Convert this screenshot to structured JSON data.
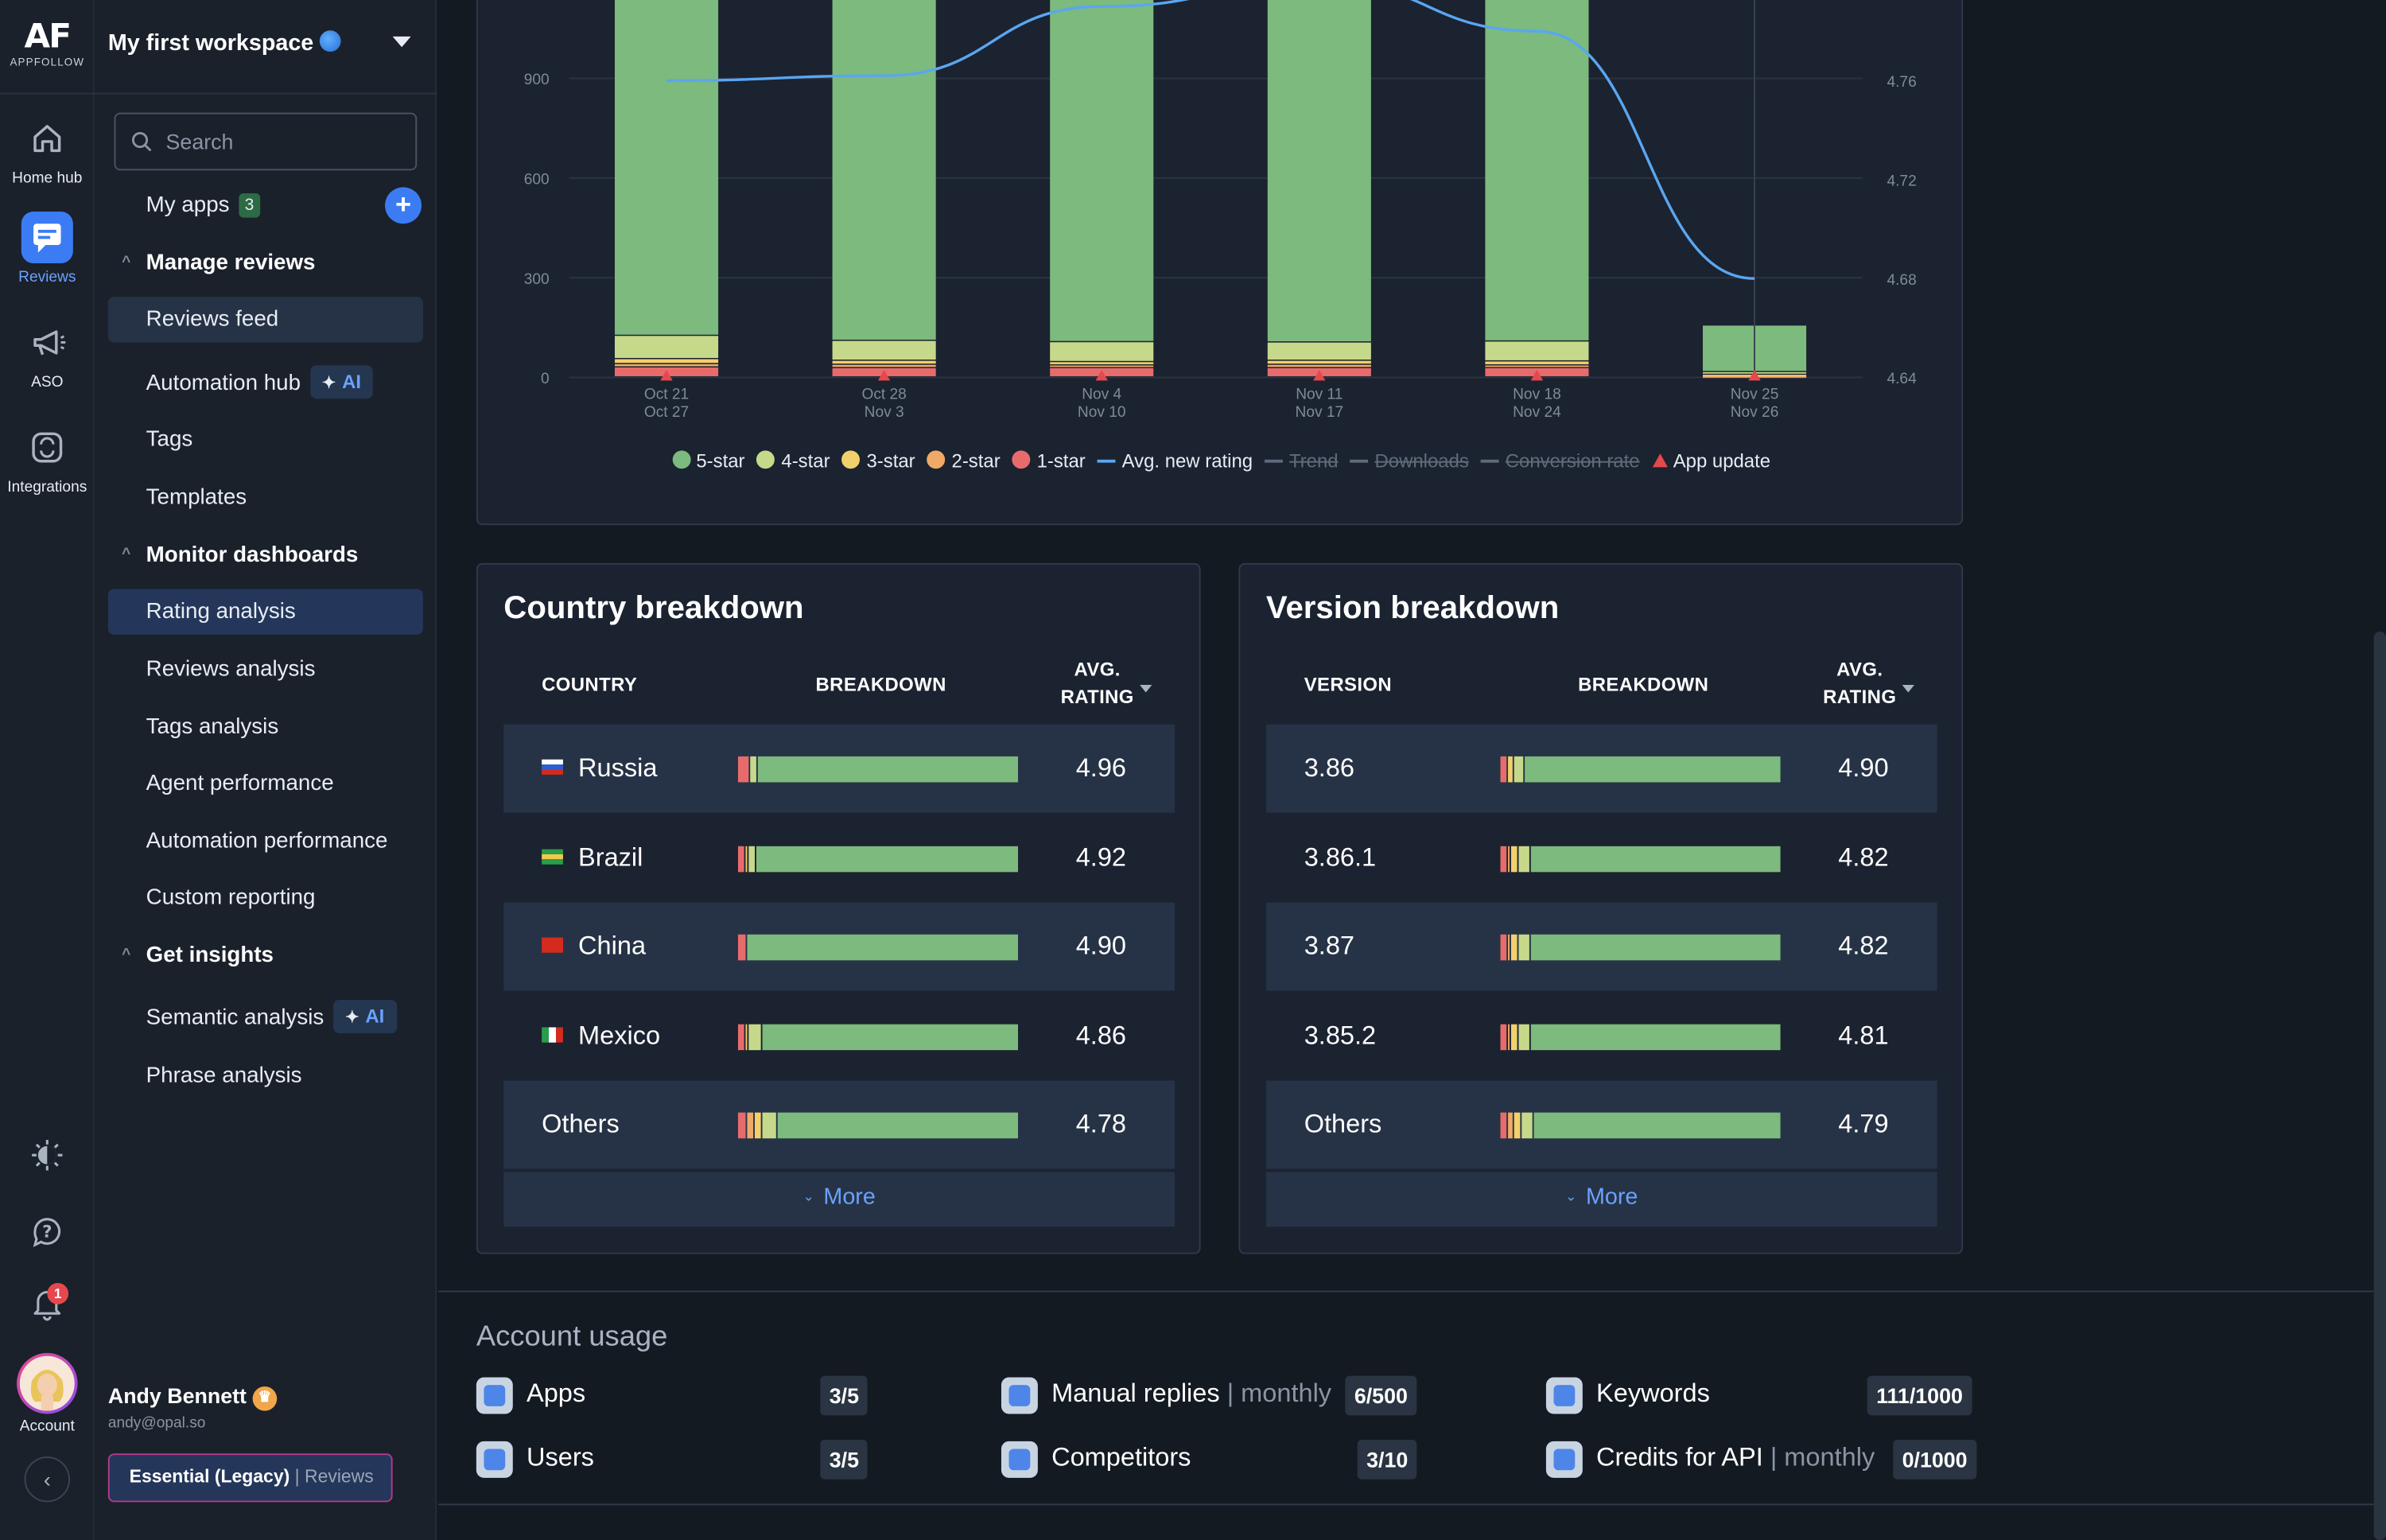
{
  "logo": {
    "mark": "AF",
    "name": "APPFOLLOW"
  },
  "rail": {
    "home": "Home hub",
    "reviews": "Reviews",
    "aso": "ASO",
    "integrations": "Integrations",
    "account": "Account",
    "notifications_count": "1"
  },
  "workspace": {
    "name": "My first workspace"
  },
  "search": {
    "placeholder": "Search"
  },
  "nav": {
    "my_apps": "My apps",
    "my_apps_count": "3",
    "manage_reviews": "Manage reviews",
    "reviews_feed": "Reviews feed",
    "automation_hub": "Automation hub",
    "tags": "Tags",
    "templates": "Templates",
    "monitor_dashboards": "Monitor dashboards",
    "rating_analysis": "Rating analysis",
    "reviews_analysis": "Reviews analysis",
    "tags_analysis": "Tags analysis",
    "agent_performance": "Agent performance",
    "automation_performance": "Automation performance",
    "custom_reporting": "Custom reporting",
    "get_insights": "Get insights",
    "semantic_analysis": "Semantic analysis",
    "phrase_analysis": "Phrase analysis",
    "ai_badge": "AI"
  },
  "user": {
    "name": "Andy Bennett",
    "email": "andy@opal.so",
    "plan": "Essential (Legacy)",
    "plan_sub": "| Reviews"
  },
  "chart_data": {
    "type": "bar",
    "categories": [
      {
        "top": "Oct 21",
        "bottom": "Oct 27"
      },
      {
        "top": "Oct 28",
        "bottom": "Nov 3"
      },
      {
        "top": "Nov 4",
        "bottom": "Nov 10"
      },
      {
        "top": "Nov 11",
        "bottom": "Nov 17"
      },
      {
        "top": "Nov 18",
        "bottom": "Nov 24"
      },
      {
        "top": "Nov 25",
        "bottom": "Nov 26"
      }
    ],
    "stacked": true,
    "series": [
      {
        "name": "5-star",
        "color": "#7dba7d",
        "values": [
          1220,
          1130,
          1140,
          1130,
          1140,
          140
        ]
      },
      {
        "name": "4-star",
        "color": "#c6d98a",
        "values": [
          70,
          60,
          60,
          55,
          60,
          8
        ]
      },
      {
        "name": "3-star",
        "color": "#f2d06b",
        "values": [
          15,
          12,
          10,
          12,
          12,
          3
        ]
      },
      {
        "name": "2-star",
        "color": "#f0a966",
        "values": [
          10,
          10,
          8,
          10,
          8,
          2
        ]
      },
      {
        "name": "1-star",
        "color": "#e86b6b",
        "values": [
          30,
          28,
          28,
          28,
          28,
          3
        ]
      }
    ],
    "line": {
      "name": "Avg. new rating",
      "color": "#5aa6f0",
      "values": [
        4.76,
        4.762,
        4.79,
        4.8,
        4.78,
        4.68
      ]
    },
    "app_update_markers": [
      0,
      1,
      2,
      3,
      4,
      5
    ],
    "y_left_ticks": [
      0,
      300,
      600,
      900
    ],
    "y_right_ticks": [
      4.64,
      4.68,
      4.72,
      4.76
    ],
    "ylim": [
      0,
      1300
    ],
    "y2lim": [
      4.64,
      4.82
    ],
    "legend": [
      {
        "name": "5-star",
        "kind": "dot",
        "color": "#7dba7d",
        "active": true
      },
      {
        "name": "4-star",
        "kind": "dot",
        "color": "#c6d98a",
        "active": true
      },
      {
        "name": "3-star",
        "kind": "dot",
        "color": "#f2d06b",
        "active": true
      },
      {
        "name": "2-star",
        "kind": "dot",
        "color": "#f0a966",
        "active": true
      },
      {
        "name": "1-star",
        "kind": "dot",
        "color": "#e86b6b",
        "active": true
      },
      {
        "name": "Avg. new rating",
        "kind": "line",
        "color": "#5aa6f0",
        "active": true
      },
      {
        "name": "Trend",
        "kind": "line",
        "color": "#5f6b7a",
        "active": false
      },
      {
        "name": "Downloads",
        "kind": "line",
        "color": "#5f6b7a",
        "active": false
      },
      {
        "name": "Conversion rate",
        "kind": "line",
        "color": "#5f6b7a",
        "active": false
      },
      {
        "name": "App update",
        "kind": "triangle",
        "color": "#e5484d",
        "active": true
      }
    ],
    "legend_position": "bottom"
  },
  "country": {
    "title": "Country breakdown",
    "col1": "COUNTRY",
    "col2": "BREAKDOWN",
    "col3a": "AVG.",
    "col3b": "RATING",
    "more": "More",
    "rows": [
      {
        "name": "Russia",
        "rating": "4.96",
        "flag": "ru",
        "shares": [
          0.94,
          0.02,
          0.0,
          0.0,
          0.04
        ]
      },
      {
        "name": "Brazil",
        "rating": "4.92",
        "flag": "br",
        "shares": [
          0.95,
          0.02,
          0.01,
          0.0,
          0.02
        ]
      },
      {
        "name": "China",
        "rating": "4.90",
        "flag": "cn",
        "shares": [
          0.97,
          0.0,
          0.0,
          0.0,
          0.03
        ]
      },
      {
        "name": "Mexico",
        "rating": "4.86",
        "flag": "mx",
        "shares": [
          0.93,
          0.04,
          0.01,
          0.0,
          0.02
        ]
      },
      {
        "name": "Others",
        "rating": "4.78",
        "flag": "",
        "shares": [
          0.88,
          0.05,
          0.02,
          0.02,
          0.03
        ]
      }
    ]
  },
  "version": {
    "title": "Version breakdown",
    "col1": "VERSION",
    "col2": "BREAKDOWN",
    "col3a": "AVG.",
    "col3b": "RATING",
    "more": "More",
    "rows": [
      {
        "name": "3.86",
        "rating": "4.90",
        "shares": [
          0.93,
          0.03,
          0.02,
          0.0,
          0.02
        ]
      },
      {
        "name": "3.86.1",
        "rating": "4.82",
        "shares": [
          0.91,
          0.04,
          0.02,
          0.01,
          0.02
        ]
      },
      {
        "name": "3.87",
        "rating": "4.82",
        "shares": [
          0.91,
          0.04,
          0.02,
          0.01,
          0.02
        ]
      },
      {
        "name": "3.85.2",
        "rating": "4.81",
        "shares": [
          0.91,
          0.04,
          0.02,
          0.01,
          0.02
        ]
      },
      {
        "name": "Others",
        "rating": "4.79",
        "shares": [
          0.9,
          0.04,
          0.02,
          0.02,
          0.02
        ]
      }
    ]
  },
  "usage": {
    "title": "Account usage",
    "monthly": "| monthly",
    "apps": {
      "label": "Apps",
      "value": "3/5"
    },
    "users": {
      "label": "Users",
      "value": "3/5"
    },
    "manual_replies": {
      "label": "Manual replies",
      "value": "6/500"
    },
    "competitors": {
      "label": "Competitors",
      "value": "3/10"
    },
    "keywords": {
      "label": "Keywords",
      "value": "111/1000"
    },
    "credits_api": {
      "label": "Credits for API",
      "value": "0/1000"
    }
  },
  "colors": {
    "accent": "#3b7cf4",
    "bg": "#141a22",
    "card": "#1b2230"
  }
}
